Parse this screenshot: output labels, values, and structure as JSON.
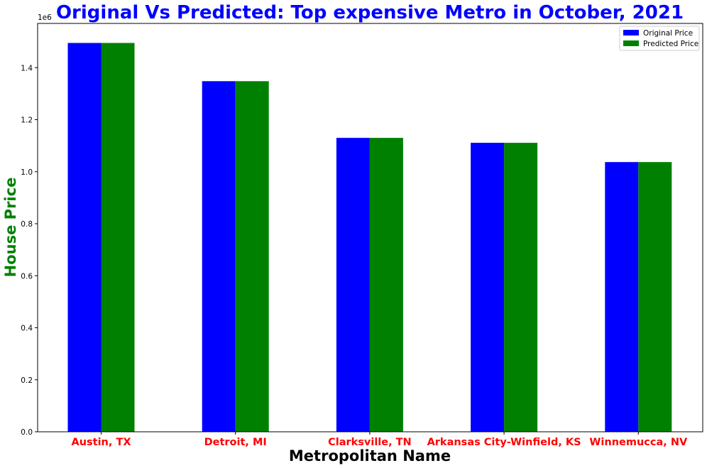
{
  "chart_data": {
    "type": "bar",
    "title": "Original Vs Predicted: Top expensive Metro in October, 2021",
    "xlabel": "Metropolitan Name",
    "ylabel": "House Price",
    "y_offset_label": "1e6",
    "categories": [
      "Austin, TX",
      "Detroit, MI",
      "Clarksville, TN",
      "Arkansas City-Winfield, KS",
      "Winnemucca, NV"
    ],
    "series": [
      {
        "name": "Original Price",
        "color": "#0000ff",
        "values": [
          1495000,
          1348000,
          1130000,
          1111000,
          1037000
        ]
      },
      {
        "name": "Predicted Price",
        "color": "#008000",
        "values": [
          1495000,
          1348000,
          1130000,
          1111000,
          1037000
        ]
      }
    ],
    "ylim": [
      0,
      1570000
    ],
    "yticks": [
      0,
      200000,
      400000,
      600000,
      800000,
      1000000,
      1200000,
      1400000
    ],
    "ytick_labels": [
      "0.0",
      "0.2",
      "0.4",
      "0.6",
      "0.8",
      "1.0",
      "1.2",
      "1.4"
    ],
    "title_color": "#0000ff",
    "xlabel_color": "#000000",
    "ylabel_color": "#008000",
    "category_label_color": "#ff0000",
    "legend_position": "top-right",
    "grid": false
  }
}
